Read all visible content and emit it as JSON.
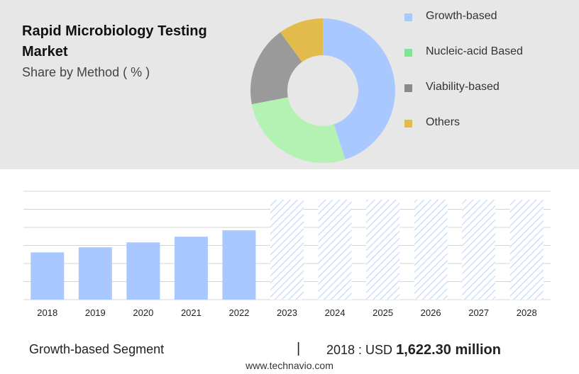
{
  "header": {
    "title": "Rapid Microbiology Testing Market",
    "subtitle": "Share by Method ( % )"
  },
  "donut": {
    "type": "pie",
    "segments": [
      {
        "name": "Growth-based",
        "value": 45,
        "color": "#a9c8ff"
      },
      {
        "name": "Nucleic-acid Based",
        "value": 27,
        "color": "#b4f2b4"
      },
      {
        "name": "Viability-based",
        "value": 18,
        "color": "#9a9a9a"
      },
      {
        "name": "Others",
        "value": 10,
        "color": "#e3bb4d"
      }
    ]
  },
  "legend": {
    "items": [
      {
        "label": "Growth-based",
        "color": "#a9c8ff"
      },
      {
        "label": "Nucleic-acid Based",
        "color": "#7fe39a"
      },
      {
        "label": "Viability-based",
        "color": "#8a8a8a"
      },
      {
        "label": "Others",
        "color": "#e3bb4d"
      }
    ]
  },
  "chart_data": {
    "type": "bar",
    "categories": [
      "2018",
      "2019",
      "2020",
      "2021",
      "2022",
      "2023",
      "2024",
      "2025",
      "2026",
      "2027",
      "2028"
    ],
    "values": [
      1622.3,
      1795,
      1965,
      2160,
      2380,
      null,
      null,
      null,
      null,
      null,
      null
    ],
    "forecast": [
      false,
      false,
      false,
      false,
      false,
      true,
      true,
      true,
      true,
      true,
      true
    ],
    "legend": "none",
    "grid": true,
    "bar_color": "#a9c8ff",
    "forecast_color": "#c5d8fb"
  },
  "footer": {
    "segment": "Growth-based Segment",
    "separator": "|",
    "stat_label": "2018 : USD",
    "stat_value": "1,622.30 million"
  },
  "source": "www.technavio.com"
}
